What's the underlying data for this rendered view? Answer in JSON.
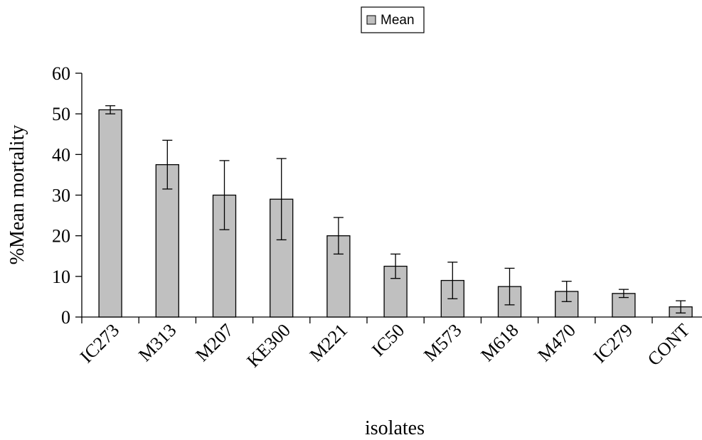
{
  "chart_data": {
    "type": "bar",
    "categories": [
      "IC273",
      "M313",
      "M207",
      "KE300",
      "M221",
      "IC50",
      "M573",
      "M618",
      "M470",
      "IC279",
      "CONT"
    ],
    "series": [
      {
        "name": "Mean",
        "values": [
          51,
          37.5,
          30,
          29,
          20,
          12.5,
          9,
          7.5,
          6.3,
          5.8,
          2.5
        ],
        "error": [
          1,
          6,
          8.5,
          10,
          4.5,
          3,
          4.5,
          4.5,
          2.5,
          1,
          1.5
        ]
      }
    ],
    "ylabel": "%Mean mortality",
    "xlabel": "isolates",
    "ylim": [
      0,
      60
    ],
    "yticks": [
      0,
      10,
      20,
      30,
      40,
      50,
      60
    ],
    "legend_position": "top-center",
    "grid": false,
    "colors": {
      "bar": "#c0c0c0",
      "stroke": "#000000"
    }
  }
}
